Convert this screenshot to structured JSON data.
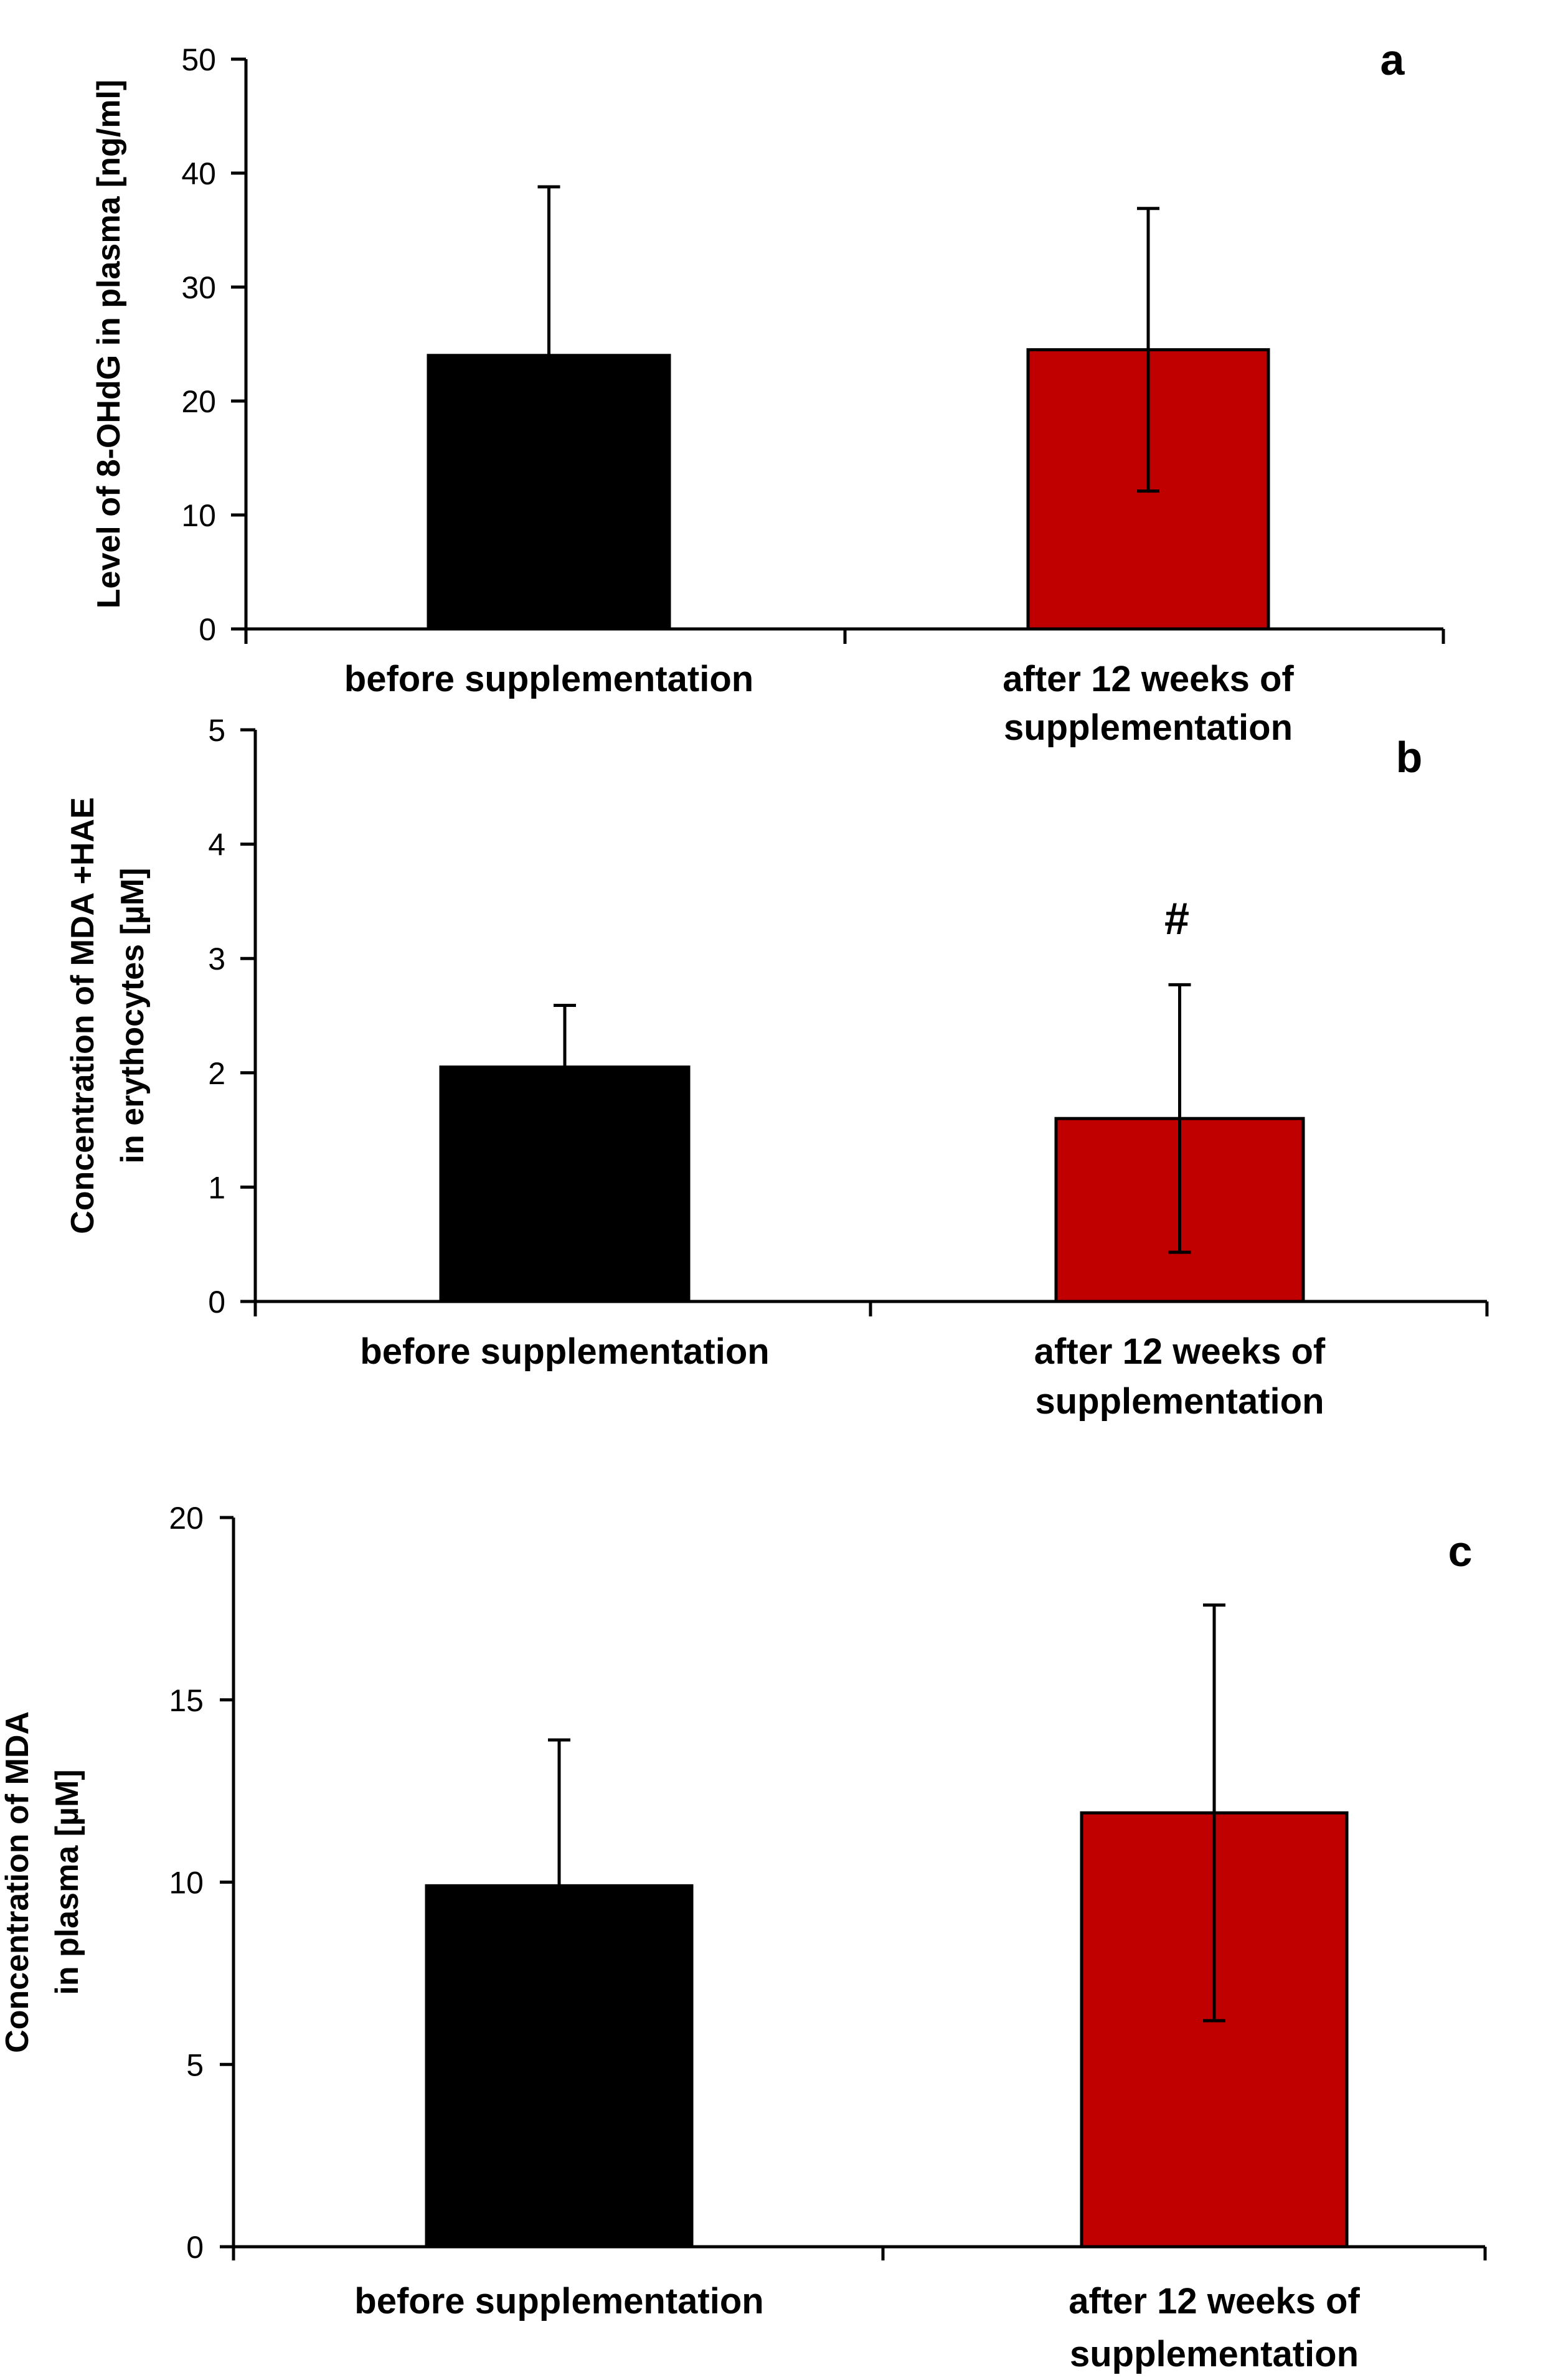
{
  "chart_data": [
    {
      "type": "bar",
      "panel": "a",
      "ylabel": "Level of 8-OHdG in plasma [ng/ml]",
      "ylim": [
        0,
        50
      ],
      "yticks": [
        0,
        10,
        20,
        30,
        40,
        50
      ],
      "categories": [
        [
          "before supplementation"
        ],
        [
          "after 12 weeks of",
          "supplementation"
        ]
      ],
      "values": [
        24,
        24.5
      ],
      "errors": [
        14.8,
        12.4
      ],
      "colors": [
        "#000000",
        "#c00000"
      ],
      "annotation": ""
    },
    {
      "type": "bar",
      "panel": "b",
      "ylabel": [
        "Concentration of MDA +HAE",
        "in erythocytes  [µM]"
      ],
      "ylim": [
        0,
        5
      ],
      "yticks": [
        0,
        1,
        2,
        3,
        4,
        5
      ],
      "categories": [
        [
          "before supplementation"
        ],
        [
          "after 12 weeks of",
          "supplementation"
        ]
      ],
      "values": [
        2.05,
        1.6
      ],
      "errors": [
        0.54,
        1.17
      ],
      "colors": [
        "#000000",
        "#c00000"
      ],
      "annotation": "#"
    },
    {
      "type": "bar",
      "panel": "c",
      "ylabel": [
        "Concentration of MDA",
        "in plasma  [µM]"
      ],
      "ylim": [
        0,
        20
      ],
      "yticks": [
        0,
        5,
        10,
        15,
        20
      ],
      "categories": [
        [
          "before supplementation"
        ],
        [
          "after 12 weeks of",
          "supplementation"
        ]
      ],
      "values": [
        9.9,
        11.9
      ],
      "errors": [
        4.0,
        5.7
      ],
      "colors": [
        "#000000",
        "#c00000"
      ],
      "annotation": ""
    }
  ]
}
